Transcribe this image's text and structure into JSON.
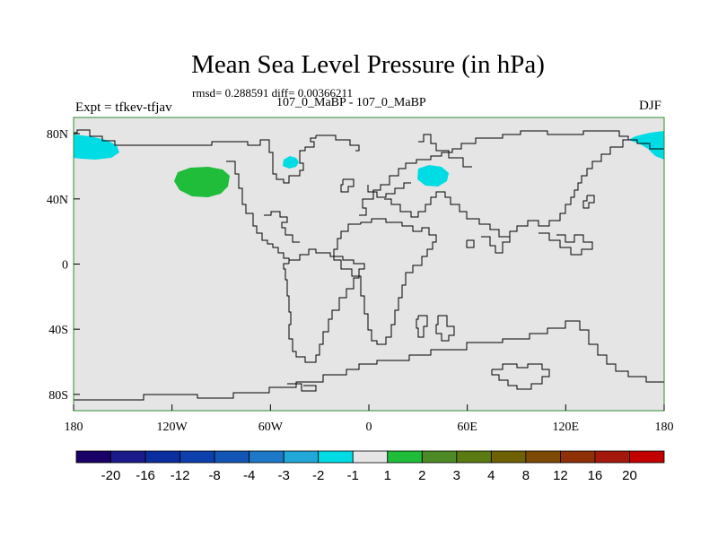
{
  "title": "Mean Sea Level Pressure (in hPa)",
  "stats": "rmsd= 0.288591 diff= 0.00366211",
  "subtitle_center": "107_0_MaBP - 107_0_MaBP",
  "subtitle_left": "Expt = tfkev-tfjav",
  "subtitle_right": "DJF",
  "colors": {
    "map_background": "#e5e5e5",
    "frame": "#2e8b2e",
    "coast": "#000000",
    "anomaly_neg1": "#00dce4",
    "anomaly_pos1": "#1fbd3a"
  },
  "map": {
    "x_ticks": [
      "180",
      "120W",
      "60W",
      "0",
      "60E",
      "120E",
      "180"
    ],
    "y_ticks": [
      "80N",
      "40N",
      "0",
      "40S",
      "80S"
    ],
    "x_range_deg": [
      -180,
      180
    ],
    "y_range_deg": [
      -90,
      90
    ],
    "anomalies": [
      {
        "name": "north-pacific-west-cyan",
        "bin": "-1",
        "lon_center": -168,
        "lat_center": 71
      },
      {
        "name": "north-pacific-green",
        "bin": "1",
        "lon_center": -104,
        "lat_center": 50
      },
      {
        "name": "greenland-cyan",
        "bin": "-1",
        "lon_center": -48,
        "lat_center": 62
      },
      {
        "name": "eurasia-cyan",
        "bin": "-1",
        "lon_center": 41,
        "lat_center": 55
      },
      {
        "name": "north-pacific-east-cyan",
        "bin": "-1",
        "lon_center": 174,
        "lat_center": 73
      }
    ]
  },
  "colorbar": {
    "colors": [
      "#1a0066",
      "#1b1b8c",
      "#0b2e9e",
      "#0d3fad",
      "#1255b5",
      "#1d78c8",
      "#21a8d8",
      "#00dce4",
      "#e5e5e5",
      "#1fbd3a",
      "#4d8a26",
      "#5b7a12",
      "#6e6005",
      "#7d4a05",
      "#8e3008",
      "#a5180c",
      "#c20000"
    ],
    "labels": [
      "-20",
      "-16",
      "-12",
      "-8",
      "-4",
      "-3",
      "-2",
      "-1",
      "1",
      "2",
      "3",
      "4",
      "8",
      "12",
      "16",
      "20"
    ]
  }
}
